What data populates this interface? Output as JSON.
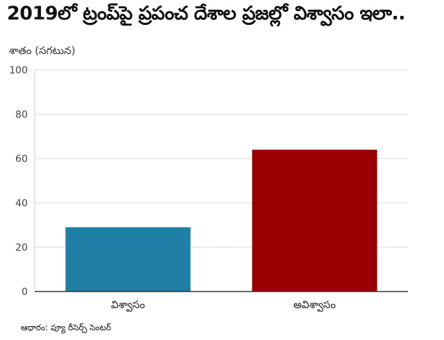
{
  "chart_data": {
    "type": "bar",
    "title": "2019లో ట్రంప్‌పై ప్రపంచ దేశాల ప్రజల్లో విశ్వాసం ఇలా..",
    "ylabel": "శాతం (సగటున)",
    "xlabel": "",
    "categories": [
      "విశ్వాసం",
      "అవిశ్వాసం"
    ],
    "values": [
      29,
      64
    ],
    "colors": [
      "#1f7fa6",
      "#9b0000"
    ],
    "ylim": [
      0,
      100
    ],
    "yticks": [
      0,
      20,
      40,
      60,
      80,
      100
    ],
    "grid": true,
    "legend": "none"
  },
  "source": "ఆధారం: ప్యూ రీసెర్చ్ సెంటర్"
}
